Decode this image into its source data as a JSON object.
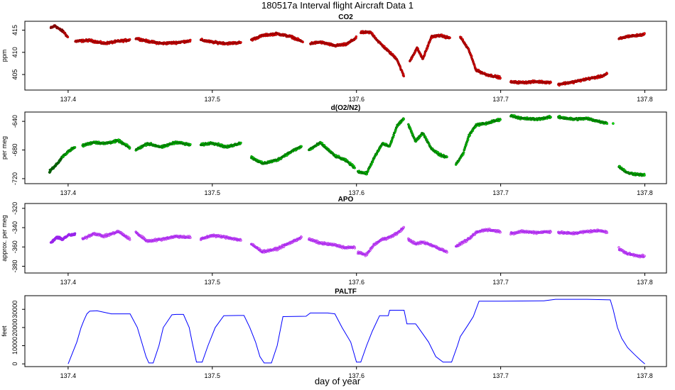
{
  "figure": {
    "title": "180517a   Interval flight Aircraft Data 1",
    "xlabel": "day of year"
  },
  "chart_data": [
    {
      "type": "scatter",
      "title": "CO2",
      "ylabel": "ppm",
      "xlim": [
        137.37,
        137.815
      ],
      "ylim": [
        401.5,
        417
      ],
      "xticks": [
        137.4,
        137.5,
        137.6,
        137.7,
        137.8
      ],
      "yticks": [
        405,
        410,
        415
      ],
      "colors": {
        "fill": "#ff0000",
        "edge": "#8b0000",
        "dark": "#6b0000"
      },
      "series": [
        {
          "segments": [
            {
              "x": [
                137.388,
                137.391,
                137.394,
                137.397
              ],
              "y": [
                415.5,
                416.0,
                415.2,
                414.6
              ],
              "dark": true
            },
            {
              "x": [
                137.397,
                137.4
              ],
              "y": [
                414.6,
                413.3
              ]
            },
            {
              "x": [
                137.405,
                137.415,
                137.425,
                137.435,
                137.443
              ],
              "y": [
                412.5,
                412.7,
                412.0,
                412.5,
                412.8
              ]
            },
            {
              "x": [
                137.447,
                137.455,
                137.465,
                137.475,
                137.485
              ],
              "y": [
                413.2,
                412.5,
                412.0,
                412.2,
                412.6
              ]
            },
            {
              "x": [
                137.492,
                137.5,
                137.51,
                137.52
              ],
              "y": [
                412.8,
                412.3,
                412.0,
                412.2
              ]
            },
            {
              "x": [
                137.527,
                137.535,
                137.545,
                137.555,
                137.563
              ],
              "y": [
                412.8,
                413.8,
                414.2,
                413.5,
                412.3
              ]
            },
            {
              "x": [
                137.568,
                137.575,
                137.585,
                137.593,
                137.6
              ],
              "y": [
                412.0,
                412.3,
                411.5,
                411.8,
                413.3
              ]
            },
            {
              "x": [
                137.603,
                137.61,
                137.615,
                137.622,
                137.628,
                137.633
              ],
              "y": [
                414.5,
                414.5,
                412.5,
                410.3,
                408.5,
                404.5
              ]
            },
            {
              "x": [
                137.637,
                137.642,
                137.646,
                137.652,
                137.658,
                137.665
              ],
              "y": [
                408.0,
                411.0,
                408.5,
                413.5,
                413.8,
                413.2
              ]
            },
            {
              "x": [
                137.672,
                137.678,
                137.683,
                137.69,
                137.7
              ],
              "y": [
                413.5,
                410.5,
                406.0,
                405.0,
                404.3
              ]
            },
            {
              "x": [
                137.707,
                137.715,
                137.725,
                137.735
              ],
              "y": [
                403.3,
                403.2,
                403.4,
                403.2
              ]
            },
            {
              "x": [
                137.74,
                137.75,
                137.76,
                137.77,
                137.774
              ],
              "y": [
                402.8,
                403.3,
                404.0,
                404.6,
                405.2
              ]
            },
            {
              "x": [
                137.782,
                137.788,
                137.795,
                137.8
              ],
              "y": [
                413.0,
                413.6,
                413.8,
                414.1
              ]
            }
          ]
        }
      ]
    },
    {
      "type": "scatter",
      "title": "d(O2/N2)",
      "ylabel": "per meg",
      "xlim": [
        137.37,
        137.815
      ],
      "ylim": [
        -727,
        -627
      ],
      "xticks": [
        137.4,
        137.5,
        137.6,
        137.7,
        137.8
      ],
      "yticks": [
        -640,
        -680,
        -720
      ],
      "colors": {
        "fill": "#00ee00",
        "edge": "#006400",
        "dark": "#005000"
      },
      "series": [
        {
          "segments": [
            {
              "x": [
                137.387,
                137.39,
                137.393,
                137.396
              ],
              "y": [
                -710,
                -704,
                -698,
                -690
              ],
              "dark": true
            },
            {
              "x": [
                137.396,
                137.4,
                137.405
              ],
              "y": [
                -690,
                -682,
                -676
              ]
            },
            {
              "x": [
                137.41,
                137.418,
                137.425,
                137.435,
                137.443
              ],
              "y": [
                -674,
                -669,
                -671,
                -667,
                -677
              ]
            },
            {
              "x": [
                137.447,
                137.455,
                137.465,
                137.475,
                137.485
              ],
              "y": [
                -680,
                -671,
                -676,
                -669,
                -673
              ]
            },
            {
              "x": [
                137.492,
                137.5,
                137.51,
                137.52
              ],
              "y": [
                -673,
                -670,
                -676,
                -670
              ]
            },
            {
              "x": [
                137.527,
                137.535,
                137.545,
                137.555,
                137.562
              ],
              "y": [
                -690,
                -699,
                -694,
                -682,
                -675
              ]
            },
            {
              "x": [
                137.567,
                137.575,
                137.585,
                137.593,
                137.599
              ],
              "y": [
                -680,
                -670,
                -688,
                -695,
                -705
              ]
            },
            {
              "x": [
                137.601,
                137.607,
                137.612,
                137.618,
                137.623,
                137.628,
                137.633
              ],
              "y": [
                -710,
                -713,
                -692,
                -671,
                -675,
                -647,
                -636
              ]
            },
            {
              "x": [
                137.636,
                137.641,
                137.646,
                137.652,
                137.658,
                137.663
              ],
              "y": [
                -644,
                -668,
                -656,
                -678,
                -687,
                -690
              ]
            },
            {
              "x": [
                137.669,
                137.674,
                137.678,
                137.683,
                137.69,
                137.7
              ],
              "y": [
                -700,
                -685,
                -660,
                -645,
                -643,
                -637
              ]
            },
            {
              "x": [
                137.707,
                137.715,
                137.725,
                137.735
              ],
              "y": [
                -632,
                -636,
                -637,
                -634
              ]
            },
            {
              "x": [
                137.74,
                137.75,
                137.76,
                137.77,
                137.774
              ],
              "y": [
                -634,
                -637,
                -636,
                -641,
                -642
              ]
            },
            {
              "x": [
                137.782,
                137.788,
                137.795,
                137.8
              ],
              "y": [
                -703,
                -712,
                -714,
                -715
              ]
            }
          ],
          "isolated": [
            {
              "x": 137.778,
              "y": -643
            }
          ]
        }
      ]
    },
    {
      "type": "scatter",
      "title": "APO",
      "ylabel": "approx. per meg",
      "xlim": [
        137.37,
        137.815
      ],
      "ylim": [
        -387,
        -315
      ],
      "xticks": [
        137.4,
        137.5,
        137.6,
        137.7,
        137.8
      ],
      "yticks": [
        -320,
        -340,
        -360,
        -380
      ],
      "colors": {
        "fill": "#ee82ee",
        "edge": "#a020f0",
        "dark": "#8a2be2"
      },
      "series": [
        {
          "segments": [
            {
              "x": [
                137.388,
                137.392,
                137.396,
                137.4,
                137.405
              ],
              "y": [
                -356,
                -350,
                -352,
                -348,
                -347
              ],
              "dark": true
            },
            {
              "x": [
                137.41,
                137.418,
                137.425,
                137.435,
                137.443
              ],
              "y": [
                -352,
                -346,
                -349,
                -344,
                -352
              ]
            },
            {
              "x": [
                137.447,
                137.455,
                137.465,
                137.475,
                137.485
              ],
              "y": [
                -345,
                -354,
                -352,
                -349,
                -350
              ]
            },
            {
              "x": [
                137.492,
                137.5,
                137.51,
                137.52
              ],
              "y": [
                -352,
                -348,
                -350,
                -353
              ]
            },
            {
              "x": [
                137.527,
                137.535,
                137.545,
                137.555,
                137.562
              ],
              "y": [
                -357,
                -365,
                -362,
                -355,
                -350
              ]
            },
            {
              "x": [
                137.567,
                137.575,
                137.585,
                137.593,
                137.599
              ],
              "y": [
                -352,
                -356,
                -358,
                -361,
                -360
              ]
            },
            {
              "x": [
                137.601,
                137.607,
                137.612,
                137.618,
                137.623,
                137.628,
                137.633
              ],
              "y": [
                -366,
                -368,
                -358,
                -352,
                -350,
                -346,
                -340
              ]
            },
            {
              "x": [
                137.636,
                137.641,
                137.646,
                137.652,
                137.658,
                137.663
              ],
              "y": [
                -352,
                -357,
                -355,
                -358,
                -362,
                -365
              ]
            },
            {
              "x": [
                137.669,
                137.674,
                137.678,
                137.683,
                137.69,
                137.7
              ],
              "y": [
                -360,
                -355,
                -352,
                -345,
                -342,
                -344
              ]
            },
            {
              "x": [
                137.707,
                137.715,
                137.725,
                137.735
              ],
              "y": [
                -346,
                -344,
                -345,
                -344
              ]
            },
            {
              "x": [
                137.74,
                137.75,
                137.76,
                137.77,
                137.774
              ],
              "y": [
                -345,
                -346,
                -344,
                -343,
                -345
              ]
            },
            {
              "x": [
                137.782,
                137.788,
                137.795,
                137.8
              ],
              "y": [
                -362,
                -367,
                -369,
                -370
              ]
            }
          ]
        }
      ]
    },
    {
      "type": "line",
      "title": "PALTF",
      "ylabel": "feet",
      "xlim": [
        137.37,
        137.815
      ],
      "ylim": [
        -1500,
        37500
      ],
      "xticks": [
        137.4,
        137.5,
        137.6,
        137.7,
        137.8
      ],
      "yticks": [
        0,
        10000,
        20000,
        30000
      ],
      "colors": {
        "line": "#0000ff"
      },
      "series": [
        {
          "x": [
            137.4,
            137.403,
            137.406,
            137.409,
            137.411,
            137.413,
            137.415,
            137.42,
            137.43,
            137.44,
            137.443,
            137.448,
            137.451,
            137.454,
            137.456,
            137.459,
            137.463,
            137.466,
            137.472,
            137.475,
            137.48,
            137.484,
            137.486,
            137.489,
            137.493,
            137.497,
            137.502,
            137.508,
            137.518,
            137.522,
            137.526,
            137.53,
            137.533,
            137.536,
            137.541,
            137.545,
            137.549,
            137.565,
            137.568,
            137.58,
            137.585,
            137.59,
            137.596,
            137.6,
            137.603,
            137.607,
            137.611,
            137.616,
            137.62,
            137.622,
            137.623,
            137.633,
            137.635,
            137.641,
            137.642,
            137.65,
            137.655,
            137.66,
            137.666,
            137.67,
            137.672,
            137.677,
            137.681,
            137.685,
            137.7,
            137.73,
            137.738,
            137.76,
            137.776,
            137.778,
            137.781,
            137.784,
            137.788,
            137.793,
            137.797,
            137.8
          ],
          "y": [
            0,
            6000,
            12000,
            20000,
            24000,
            27500,
            29000,
            29200,
            27500,
            27500,
            27500,
            20000,
            12000,
            4000,
            500,
            500,
            10000,
            20000,
            27000,
            27200,
            27200,
            20000,
            12000,
            1000,
            1000,
            10000,
            20000,
            26500,
            26600,
            26600,
            20000,
            12000,
            4000,
            500,
            500,
            10000,
            26000,
            26200,
            28000,
            28000,
            27500,
            20000,
            12000,
            1000,
            1000,
            10000,
            18000,
            26500,
            26500,
            26500,
            29500,
            29500,
            22000,
            22000,
            21000,
            12000,
            4000,
            1000,
            1000,
            10000,
            15000,
            21000,
            26000,
            34500,
            34500,
            34700,
            35500,
            35500,
            35200,
            30000,
            20000,
            14000,
            9000,
            5000,
            2000,
            0
          ]
        }
      ]
    }
  ]
}
